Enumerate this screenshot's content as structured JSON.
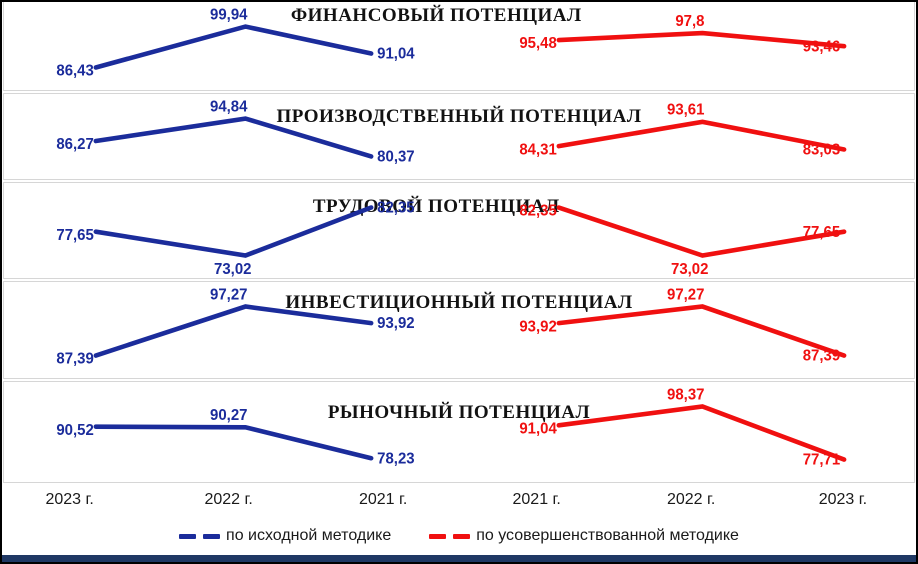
{
  "colors": {
    "blue_series": "#1B2C9B",
    "red_series": "#F01010",
    "panel_border": "#d6d6d6",
    "outer_border": "#000000",
    "bottom_bar": "#1F3864",
    "title_text": "#121212"
  },
  "chart_data": {
    "type": "line",
    "layout": "five stacked panels; blue series plotted on left half with years 2023->2021, red series on right half with years 2021->2023; value labels at each point; no gridlines; shared x-axis row at bottom; legend centered below",
    "x_axis_labels": [
      "2023 г.",
      "2022 г.",
      "2021 г.",
      "2021 г.",
      "2022 г.",
      "2023 г."
    ],
    "legend": [
      {
        "label": "по исходной методике",
        "color_key": "blue_series"
      },
      {
        "label": "по усовершенствованной методике",
        "color_key": "red_series"
      }
    ],
    "panels": [
      {
        "title": "ФИНАНСОВЫЙ ПОТЕНЦИАЛ",
        "blue": {
          "years": [
            "2023",
            "2022",
            "2021"
          ],
          "values": [
            86.43,
            99.94,
            91.04
          ],
          "labels": [
            "86,43",
            "99,94",
            "91,04"
          ]
        },
        "red": {
          "years": [
            "2021",
            "2022",
            "2023"
          ],
          "values": [
            95.48,
            97.8,
            93.46
          ],
          "labels": [
            "95,48",
            "97,8",
            "93,46"
          ]
        }
      },
      {
        "title": "ПРОИЗВОДСТВЕННЫЙ ПОТЕНЦИАЛ",
        "blue": {
          "years": [
            "2023",
            "2022",
            "2021"
          ],
          "values": [
            86.27,
            94.84,
            80.37
          ],
          "labels": [
            "86,27",
            "94,84",
            "80,37"
          ]
        },
        "red": {
          "years": [
            "2021",
            "2022",
            "2023"
          ],
          "values": [
            84.31,
            93.61,
            83.03
          ],
          "labels": [
            "84,31",
            "93,61",
            "83,03"
          ]
        }
      },
      {
        "title": "ТРУДОВОЙ ПОТЕНЦИАЛ",
        "blue": {
          "years": [
            "2023",
            "2022",
            "2021"
          ],
          "values": [
            77.65,
            73.02,
            82.35
          ],
          "labels": [
            "77,65",
            "73,02",
            "82,35"
          ]
        },
        "red": {
          "years": [
            "2021",
            "2022",
            "2023"
          ],
          "values": [
            82.35,
            73.02,
            77.65
          ],
          "labels": [
            "82,35",
            "73,02",
            "77,65"
          ]
        }
      },
      {
        "title": "ИНВЕСТИЦИОННЫЙ ПОТЕНЦИАЛ",
        "blue": {
          "years": [
            "2023",
            "2022",
            "2021"
          ],
          "values": [
            87.39,
            97.27,
            93.92
          ],
          "labels": [
            "87,39",
            "97,27",
            "93,92"
          ]
        },
        "red": {
          "years": [
            "2021",
            "2022",
            "2023"
          ],
          "values": [
            93.92,
            97.27,
            87.39
          ],
          "labels": [
            "93,92",
            "97,27",
            "87,39"
          ]
        }
      },
      {
        "title": "РЫНОЧНЫЙ ПОТЕНЦИАЛ",
        "blue": {
          "years": [
            "2023",
            "2022",
            "2021"
          ],
          "values": [
            90.52,
            90.27,
            78.23
          ],
          "labels": [
            "90,52",
            "90,27",
            "78,23"
          ]
        },
        "red": {
          "years": [
            "2021",
            "2022",
            "2023"
          ],
          "values": [
            91.04,
            98.37,
            77.71
          ],
          "labels": [
            "91,04",
            "98,37",
            "77,71"
          ],
          "note": "first label partially hidden behind panel title"
        }
      }
    ]
  }
}
